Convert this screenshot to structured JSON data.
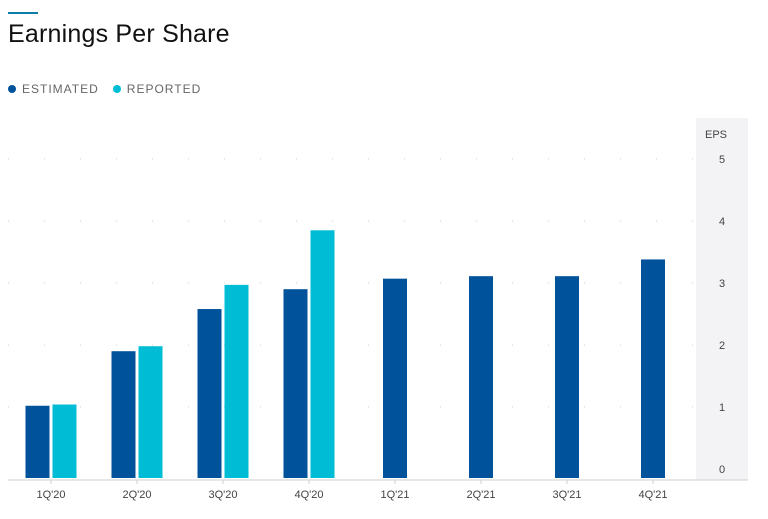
{
  "page": {
    "title": "Earnings Per Share"
  },
  "legend": [
    {
      "label": "ESTIMATED",
      "color": "#00539b"
    },
    {
      "label": "REPORTED",
      "color": "#00bcd4"
    }
  ],
  "chart_data": {
    "type": "bar",
    "title": "Earnings Per Share",
    "xlabel": "",
    "ylabel": "EPS",
    "ylim": [
      0,
      5
    ],
    "yticks": [
      0,
      1,
      2,
      3,
      4,
      5
    ],
    "grid": true,
    "legend_position": "top-left",
    "categories": [
      "1Q'20",
      "2Q'20",
      "3Q'20",
      "4Q'20",
      "1Q'21",
      "2Q'21",
      "3Q'21",
      "4Q'21"
    ],
    "series": [
      {
        "name": "ESTIMATED",
        "color": "#00539b",
        "values": [
          1.02,
          1.9,
          2.58,
          2.9,
          3.07,
          3.11,
          3.11,
          3.38
        ]
      },
      {
        "name": "REPORTED",
        "color": "#00bcd4",
        "values": [
          1.04,
          1.98,
          2.97,
          3.85,
          null,
          null,
          null,
          null
        ]
      }
    ]
  }
}
